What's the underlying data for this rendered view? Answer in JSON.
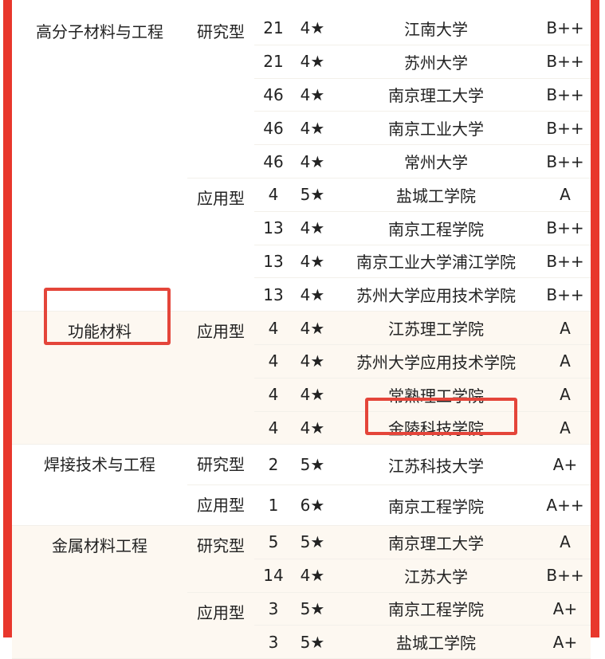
{
  "accent_color": "#e8372c",
  "groups": [
    {
      "major": "高分子材料与工程",
      "shaded": false,
      "types": [
        {
          "type": "研究型",
          "rows": [
            [
              "21",
              "4★",
              "江南大学",
              "B++"
            ],
            [
              "21",
              "4★",
              "苏州大学",
              "B++"
            ],
            [
              "46",
              "4★",
              "南京理工大学",
              "B++"
            ],
            [
              "46",
              "4★",
              "南京工业大学",
              "B++"
            ],
            [
              "46",
              "4★",
              "常州大学",
              "B++"
            ]
          ]
        },
        {
          "type": "应用型",
          "rows": [
            [
              "4",
              "5★",
              "盐城工学院",
              "A"
            ],
            [
              "13",
              "4★",
              "南京工程学院",
              "B++"
            ],
            [
              "13",
              "4★",
              "南京工业大学浦江学院",
              "B++"
            ],
            [
              "13",
              "4★",
              "苏州大学应用技术学院",
              "B++"
            ]
          ]
        }
      ]
    },
    {
      "major": "功能材料",
      "shaded": true,
      "highlighted": true,
      "types": [
        {
          "type": "应用型",
          "rows": [
            [
              "4",
              "4★",
              "江苏理工学院",
              "A"
            ],
            [
              "4",
              "4★",
              "苏州大学应用技术学院",
              "A"
            ],
            [
              "4",
              "4★",
              "常熟理工学院",
              "A"
            ],
            [
              "4",
              "4★",
              "金陵科技学院",
              "A"
            ]
          ]
        }
      ]
    },
    {
      "major": "焊接技术与工程",
      "shaded": false,
      "types": [
        {
          "type": "研究型",
          "rows": [
            [
              "2",
              "5★",
              "江苏科技大学",
              "A+"
            ]
          ]
        },
        {
          "type": "应用型",
          "rows": [
            [
              "1",
              "6★",
              "南京工程学院",
              "A++"
            ]
          ]
        }
      ]
    },
    {
      "major": "金属材料工程",
      "shaded": true,
      "types": [
        {
          "type": "研究型",
          "rows": [
            [
              "5",
              "5★",
              "南京理工大学",
              "A"
            ],
            [
              "14",
              "4★",
              "江苏大学",
              "B++"
            ]
          ]
        },
        {
          "type": "应用型",
          "rows": [
            [
              "3",
              "5★",
              "南京工程学院",
              "A+"
            ],
            [
              "3",
              "5★",
              "盐城工学院",
              "A+"
            ]
          ]
        }
      ]
    }
  ],
  "highlighted_school": "金陵科技学院"
}
